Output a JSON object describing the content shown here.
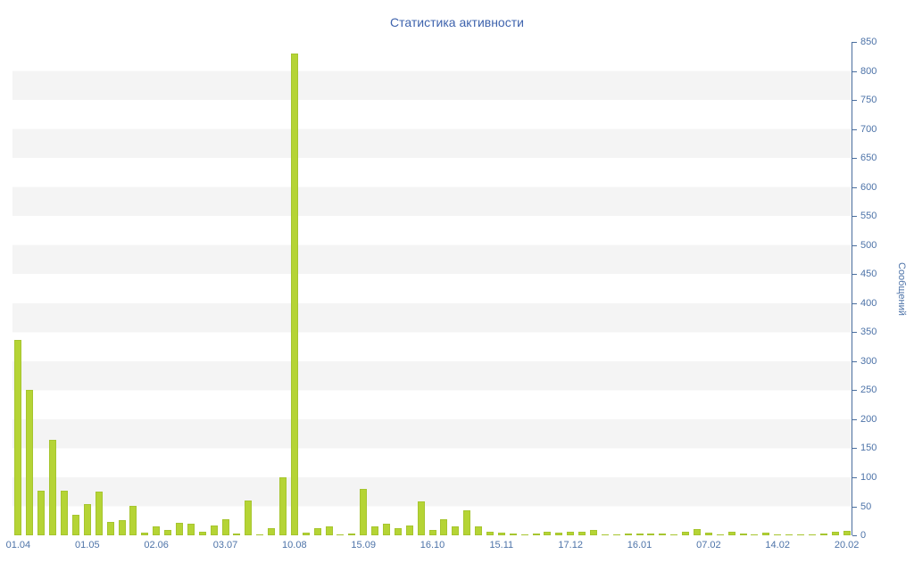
{
  "title": "Статистика активности",
  "chart_data": {
    "type": "bar",
    "title": "Статистика активности",
    "xlabel": "",
    "ylabel": "Сообщений",
    "ylim": [
      0,
      850
    ],
    "ytick_step": 50,
    "legend": false,
    "grid": "alternating-horizontal-bands-per-50-units",
    "x_tick_labels": [
      "01.04",
      "01.05",
      "02.06",
      "03.07",
      "10.08",
      "15.09",
      "16.10",
      "15.11",
      "17.12",
      "16.01",
      "07.02",
      "14.02",
      "20.02"
    ],
    "x_tick_indices": [
      0,
      6,
      12,
      18,
      24,
      30,
      36,
      42,
      48,
      54,
      60,
      66,
      72
    ],
    "values": [
      337,
      250,
      77,
      165,
      77,
      35,
      54,
      75,
      23,
      26,
      51,
      5,
      15,
      9,
      22,
      20,
      6,
      17,
      28,
      3,
      60,
      2,
      12,
      100,
      830,
      5,
      12,
      15,
      2,
      3,
      80,
      15,
      20,
      12,
      17,
      58,
      9,
      28,
      15,
      43,
      15,
      6,
      5,
      3,
      2,
      3,
      6,
      4,
      6,
      6,
      9,
      2,
      1,
      3,
      3,
      3,
      3,
      2,
      6,
      11,
      5,
      1,
      6,
      3,
      2,
      5,
      1,
      2,
      1,
      1,
      3,
      6,
      8
    ]
  },
  "colors": {
    "background": "#ffffff",
    "band": "#f4f4f4",
    "bar_fill": "#b5d435",
    "bar_border": "#a6c52f",
    "axis_line": "#4a6e9e",
    "axis_text": "#4d73a8",
    "title_text": "#3e63ad"
  }
}
